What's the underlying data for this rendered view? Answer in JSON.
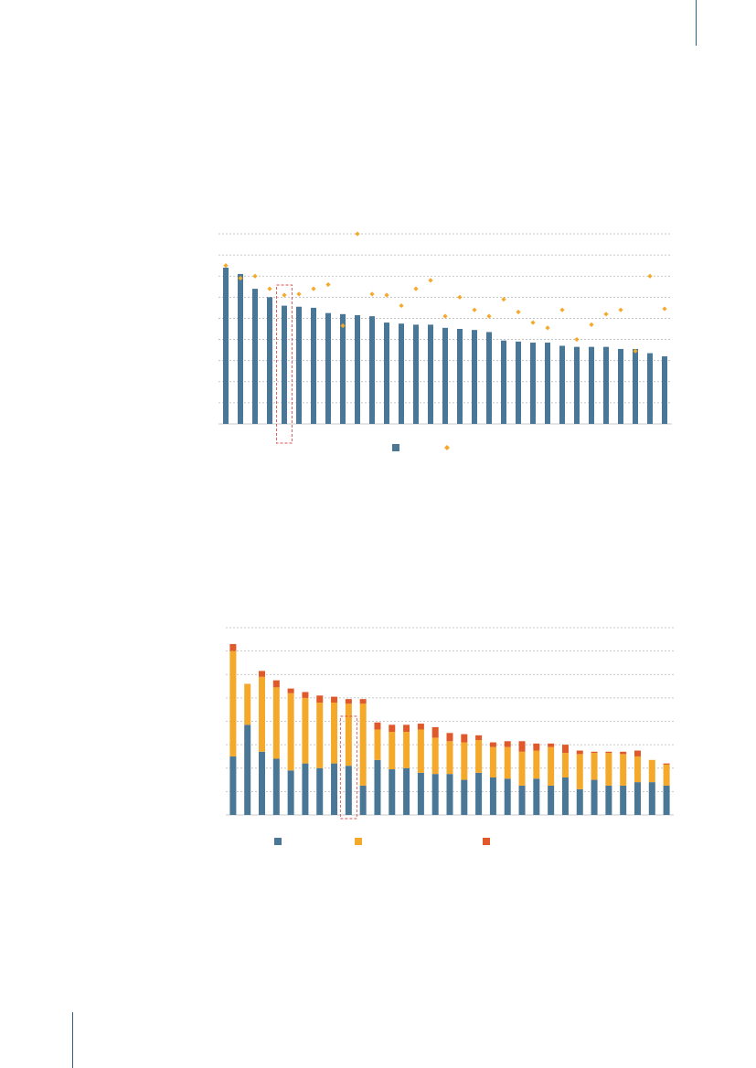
{
  "colors": {
    "blue": "#4a7796",
    "orange": "#f4a92b",
    "red": "#e0592a",
    "grid": "#b7b7b7",
    "highlight": "#d9534f",
    "accent_line": "#2a5f86"
  },
  "chart_data": [
    {
      "type": "bar",
      "title": "",
      "xlabel": "",
      "ylabel": "",
      "ylim": [
        0,
        9
      ],
      "grid": true,
      "legend_placement": "bottom-center",
      "highlight_index": 4,
      "categories": [
        "",
        "",
        "",
        "",
        "",
        "",
        "",
        "",
        "",
        "",
        "",
        "",
        "",
        "",
        "",
        "",
        "",
        "",
        "",
        "",
        "",
        "",
        "",
        "",
        "",
        "",
        "",
        "",
        "",
        "",
        ""
      ],
      "series": [
        {
          "kind": "bar",
          "color": "#4a7796",
          "values": [
            7.4,
            7.1,
            6.4,
            6.0,
            5.6,
            5.55,
            5.5,
            5.25,
            5.2,
            5.15,
            5.1,
            4.8,
            4.75,
            4.7,
            4.7,
            4.55,
            4.5,
            4.45,
            4.35,
            3.95,
            3.9,
            3.85,
            3.85,
            3.7,
            3.65,
            3.65,
            3.65,
            3.55,
            3.55,
            3.35,
            3.2
          ]
        },
        {
          "kind": "scatter",
          "color": "#f4a92b",
          "values": [
            7.5,
            6.9,
            7.0,
            6.4,
            6.1,
            6.15,
            6.4,
            6.6,
            4.65,
            9.0,
            6.15,
            6.1,
            5.6,
            6.4,
            6.8,
            5.1,
            6.0,
            5.4,
            5.1,
            5.9,
            5.3,
            4.8,
            4.55,
            5.4,
            4.0,
            4.7,
            5.2,
            5.4,
            3.45,
            7.0,
            5.45
          ]
        }
      ]
    },
    {
      "type": "bar",
      "stacked": true,
      "title": "",
      "xlabel": "",
      "ylabel": "",
      "ylim": [
        0,
        8
      ],
      "grid": true,
      "legend_placement": "bottom-center",
      "highlight_index": 8,
      "categories": [
        "",
        "",
        "",
        "",
        "",
        "",
        "",
        "",
        "",
        "",
        "",
        "",
        "",
        "",
        "",
        "",
        "",
        "",
        "",
        "",
        "",
        "",
        "",
        "",
        "",
        "",
        "",
        "",
        "",
        "",
        ""
      ],
      "series": [
        {
          "color": "#4a7796",
          "values": [
            2.5,
            3.85,
            2.7,
            2.4,
            1.9,
            2.2,
            2.0,
            2.2,
            2.1,
            1.25,
            2.35,
            1.95,
            2.0,
            1.8,
            1.75,
            1.75,
            1.5,
            1.8,
            1.6,
            1.55,
            1.25,
            1.55,
            1.25,
            1.6,
            1.1,
            1.5,
            1.25,
            1.25,
            1.4,
            1.4,
            1.25
          ]
        },
        {
          "color": "#f4a92b",
          "values": [
            4.5,
            1.75,
            3.2,
            3.05,
            3.3,
            2.8,
            2.8,
            2.6,
            2.65,
            3.5,
            1.3,
            1.6,
            1.55,
            1.85,
            1.55,
            1.4,
            1.6,
            1.4,
            1.3,
            1.35,
            1.45,
            1.2,
            1.65,
            1.05,
            1.5,
            1.15,
            1.4,
            1.35,
            1.1,
            0.95,
            0.9
          ]
        },
        {
          "color": "#e0592a",
          "values": [
            0.3,
            0.0,
            0.25,
            0.3,
            0.2,
            0.25,
            0.3,
            0.25,
            0.2,
            0.2,
            0.3,
            0.3,
            0.3,
            0.25,
            0.45,
            0.35,
            0.35,
            0.2,
            0.2,
            0.25,
            0.45,
            0.3,
            0.15,
            0.35,
            0.15,
            0.05,
            0.05,
            0.1,
            0.25,
            0.0,
            0.05
          ]
        }
      ]
    }
  ]
}
